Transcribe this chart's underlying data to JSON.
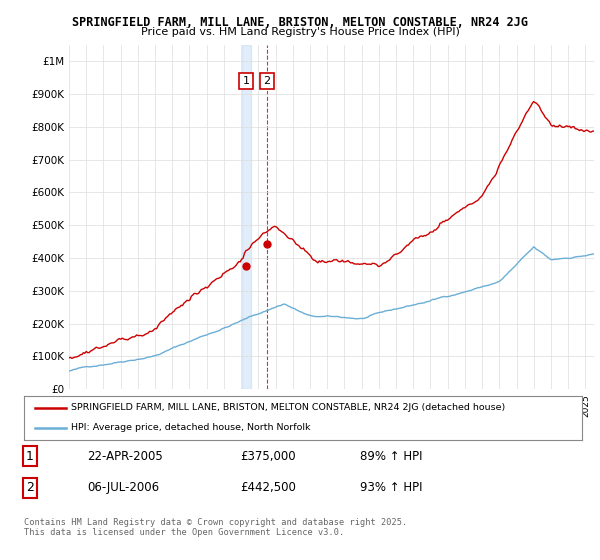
{
  "title_line1": "SPRINGFIELD FARM, MILL LANE, BRISTON, MELTON CONSTABLE, NR24 2JG",
  "title_line2": "Price paid vs. HM Land Registry's House Price Index (HPI)",
  "ylim": [
    0,
    1050000
  ],
  "yticks": [
    0,
    100000,
    200000,
    300000,
    400000,
    500000,
    600000,
    700000,
    800000,
    900000,
    1000000
  ],
  "ytick_labels": [
    "£0",
    "£100K",
    "£200K",
    "£300K",
    "£400K",
    "£500K",
    "£600K",
    "£700K",
    "£800K",
    "£900K",
    "£1M"
  ],
  "xlim_start": 1995.0,
  "xlim_end": 2025.5,
  "hpi_color": "#6baed6",
  "price_color": "#cc0000",
  "sale1_date": 2005.3,
  "sale1_price": 375000,
  "sale2_date": 2006.5,
  "sale2_price": 442500,
  "legend_label1": "SPRINGFIELD FARM, MILL LANE, BRISTON, MELTON CONSTABLE, NR24 2JG (detached house)",
  "legend_label2": "HPI: Average price, detached house, North Norfolk",
  "table_row1": [
    "1",
    "22-APR-2005",
    "£375,000",
    "89% ↑ HPI"
  ],
  "table_row2": [
    "2",
    "06-JUL-2006",
    "£442,500",
    "93% ↑ HPI"
  ],
  "footnote": "Contains HM Land Registry data © Crown copyright and database right 2025.\nThis data is licensed under the Open Government Licence v3.0.",
  "background_color": "#ffffff",
  "grid_color": "#dddddd"
}
